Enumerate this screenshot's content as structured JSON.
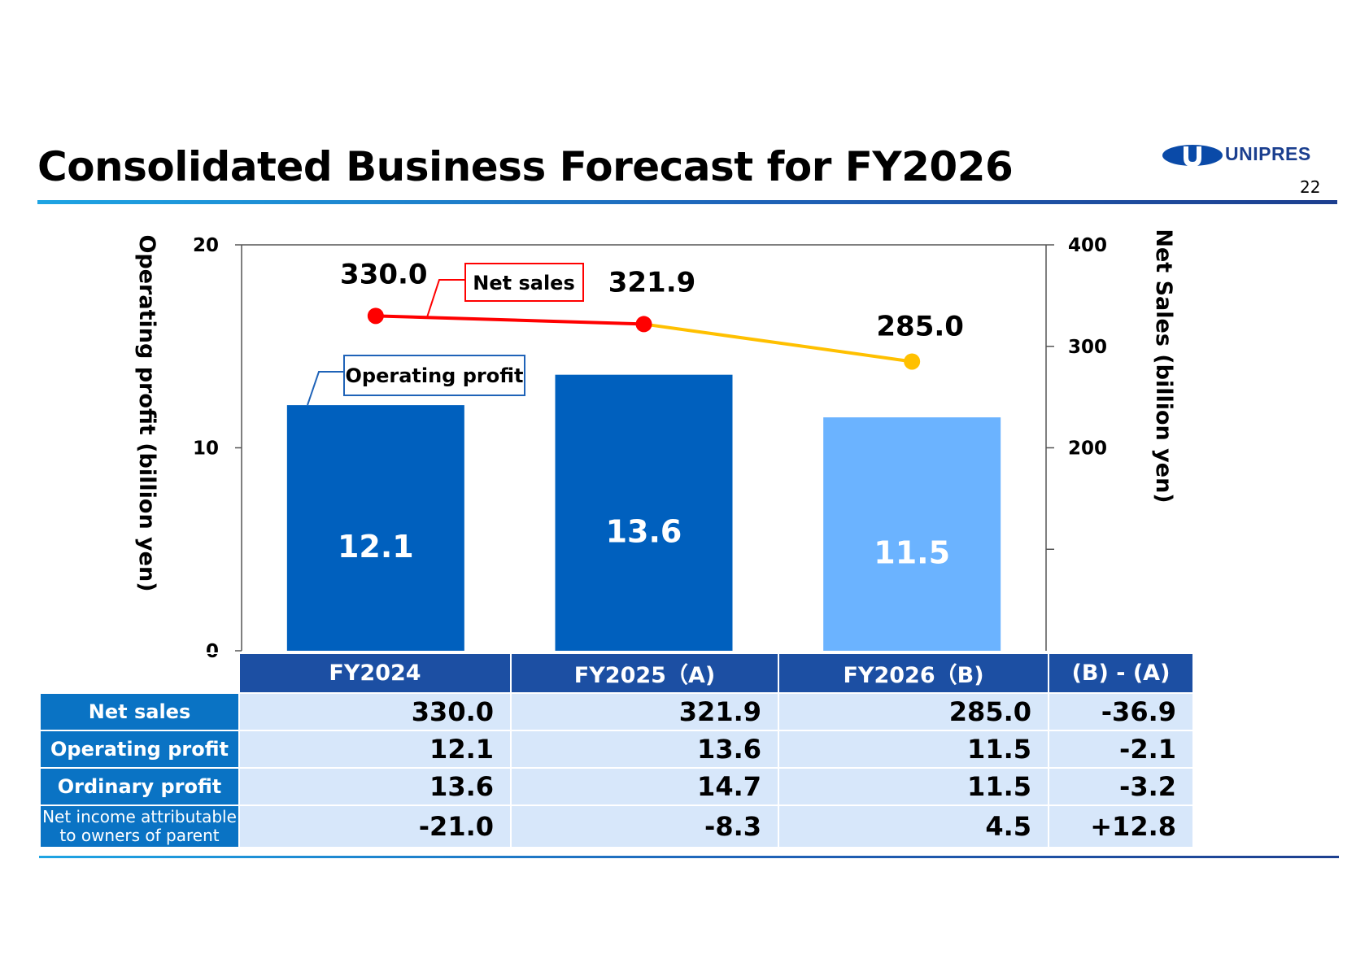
{
  "header": {
    "title": "Consolidated Business Forecast for FY2026",
    "page_number": "22",
    "logo_text": "UNIPRES",
    "accent_color": "#1f63b8"
  },
  "chart_data": {
    "type": "bar",
    "categories": [
      "FY2024",
      "FY2025（A)",
      "FY2026（B)"
    ],
    "series": [
      {
        "name": "Operating profit",
        "kind": "bar",
        "axis": "left",
        "values": [
          12.1,
          13.6,
          11.5
        ],
        "value_labels": [
          "12.1",
          "13.6",
          "11.5"
        ],
        "colors": [
          "#0060be",
          "#0060be",
          "#6bb3ff"
        ]
      },
      {
        "name": "Net sales",
        "kind": "line",
        "axis": "right",
        "values": [
          330.0,
          321.9,
          285.0
        ],
        "value_labels": [
          "330.0",
          "321.9",
          "285.0"
        ],
        "colors": [
          "#ff0000",
          "#ff0000",
          "#ffc000"
        ]
      }
    ],
    "ylabel": "Operating profit (billion yen)",
    "ylim": [
      0,
      20
    ],
    "yticks": [
      "0",
      "10",
      "20"
    ],
    "y2label": "Net Sales (billion yen)",
    "y2lim": [
      0,
      400
    ],
    "y2ticks": [
      "200",
      "300",
      "400"
    ],
    "y2_tick_marks": [
      200,
      300,
      400
    ],
    "legend": "callouts"
  },
  "table": {
    "columns": [
      "FY2024",
      "FY2025（A)",
      "FY2026（B)",
      "(B) - (A)"
    ],
    "rows": [
      {
        "label": "Net sales",
        "values": [
          "330.0",
          "321.9",
          "285.0",
          "-36.9"
        ]
      },
      {
        "label": "Operating profit",
        "values": [
          "12.1",
          "13.6",
          "11.5",
          "-2.1"
        ]
      },
      {
        "label": "Ordinary profit",
        "values": [
          "13.6",
          "14.7",
          "11.5",
          "-3.2"
        ]
      },
      {
        "label_line1": "Net income attributable",
        "label_line2": "to owners of parent",
        "values": [
          "-21.0",
          "-8.3",
          "4.5",
          "+12.8"
        ]
      }
    ]
  }
}
